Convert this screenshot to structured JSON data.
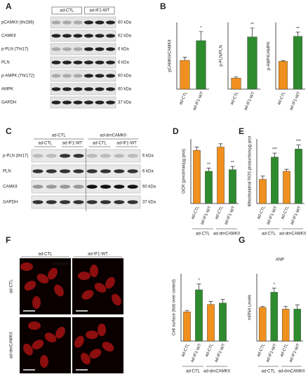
{
  "panel_labels": [
    "A",
    "B",
    "C",
    "D",
    "E",
    "F",
    "G"
  ],
  "blot_a": {
    "groups": [
      "ad-CTL",
      "ad-IF1-WT"
    ],
    "rows": [
      {
        "label": "pCAMKII (thr286)",
        "size": "60 kDa"
      },
      {
        "label": "CAMKII",
        "size": "62 kDa"
      },
      {
        "label": "p-PLN (Thr17)",
        "size": "6 kDa"
      },
      {
        "label": "PLN",
        "size": "6 kDa"
      },
      {
        "label": "p-AMPK (Thr172)",
        "size": "60 kDa"
      },
      {
        "label": "AMPK",
        "size": "60 kDa"
      },
      {
        "label": "GAPDH",
        "size": "37 kDa"
      }
    ]
  },
  "blot_c": {
    "groups": [
      "ad-CTL",
      "ad-drnCAMKII"
    ],
    "lanes": [
      "ad-CTL",
      "ad-IF1-WT",
      "ad-CTL",
      "ad-IF1-WT"
    ],
    "rows": [
      {
        "label": "p-PLN (thr17)",
        "size": "6 kDa"
      },
      {
        "label": "PLN",
        "size": "6 kDa"
      },
      {
        "label": "CAMKII",
        "size": "60 kDa"
      },
      {
        "label": "GAPDH",
        "size": "37 kDa"
      }
    ]
  },
  "images_f": {
    "columns": [
      "ad-CTL",
      "ad-IF1-WT"
    ],
    "rows": [
      "ad-CTL",
      "ad-drnCAMKII"
    ],
    "stain": "α-actinin"
  },
  "chart_data": [
    {
      "type": "bar",
      "ylabel": "pCAMKII/CAMKII",
      "categories": [
        "ad-CTL",
        "ad-IF1-WT"
      ],
      "values": [
        0.95,
        1.6
      ],
      "errors": [
        0.1,
        0.3
      ],
      "colors": [
        "#f0901e",
        "#2e8b2e"
      ],
      "annotations": [
        null,
        "*"
      ],
      "ylim": [
        0,
        2.2
      ]
    },
    {
      "type": "bar",
      "ylabel": "p-PLN/PLN",
      "categories": [
        "ad-CTL",
        "ad-IF1-WT"
      ],
      "values": [
        1.0,
        4.7
      ],
      "errors": [
        0.1,
        0.8
      ],
      "colors": [
        "#f0901e",
        "#2e8b2e"
      ],
      "annotations": [
        null,
        "**"
      ],
      "ylim": [
        0,
        6
      ]
    },
    {
      "type": "bar",
      "ylabel": "p-AMPK/AMPK",
      "categories": [
        "ad-CTL",
        "ad-IF1-WT"
      ],
      "values": [
        1.0,
        1.9
      ],
      "errors": [
        0.03,
        0.15
      ],
      "colors": [
        "#f0901e",
        "#2e8b2e"
      ],
      "annotations": [
        null,
        "**"
      ],
      "ylim": [
        0,
        2.4
      ]
    },
    {
      "type": "bar",
      "ylabel": "OCR (pmol/min/µg prot)",
      "groups": [
        "ad-CTL",
        "ad-drnCAMKII"
      ],
      "categories": [
        "ad-CTL",
        "ad-IF1-WT",
        "ad-CTL",
        "ad-IF1-WT"
      ],
      "values": [
        33,
        20,
        35,
        21
      ],
      "errors": [
        2,
        2,
        2,
        2
      ],
      "colors": [
        "#f0901e",
        "#2e8b2e",
        "#f0901e",
        "#2e8b2e"
      ],
      "annotations": [
        null,
        "**",
        null,
        "**"
      ],
      "ylim": [
        0,
        40
      ]
    },
    {
      "type": "bar",
      "ylabel": "Mitochondrial ROS production/µg prot",
      "groups": [
        "ad-CTL",
        "ad-drnCAMKII"
      ],
      "categories": [
        "ad-CTL",
        "ad-IF1-WT",
        "ad-CTL",
        "ad-IF1-WT"
      ],
      "values": [
        6,
        11.5,
        8,
        13.5
      ],
      "errors": [
        0.8,
        1,
        0.5,
        1
      ],
      "colors": [
        "#f0901e",
        "#2e8b2e",
        "#f0901e",
        "#2e8b2e"
      ],
      "annotations": [
        null,
        "***",
        null,
        "***"
      ],
      "ylim": [
        0,
        16
      ]
    },
    {
      "type": "bar",
      "ylabel": "Cell surface (fold over control)",
      "groups": [
        "ad-CTL",
        "ad-drnCAMKII"
      ],
      "categories": [
        "ad-CTL",
        "ad-IF1-WT",
        "ad-CTL",
        "ad-IF1-WT"
      ],
      "values": [
        1.0,
        1.75,
        1.25,
        1.3
      ],
      "errors": [
        0.05,
        0.2,
        0.1,
        0.12
      ],
      "colors": [
        "#f0901e",
        "#2e8b2e",
        "#f0901e",
        "#2e8b2e"
      ],
      "annotations": [
        null,
        "*",
        null,
        null
      ],
      "ylim": [
        0,
        2.3
      ]
    },
    {
      "type": "bar",
      "title": "ANP",
      "ylabel": "mRNA Levels",
      "groups": [
        "ad-CTL",
        "ad-drnCAMKII"
      ],
      "categories": [
        "ad-CTL",
        "ad-IF1-WT",
        "ad-CTL",
        "ad-IF1-WT"
      ],
      "values": [
        1.0,
        1.45,
        0.95,
        0.95
      ],
      "errors": [
        0.03,
        0.12,
        0.08,
        0.12
      ],
      "colors": [
        "#f0901e",
        "#2e8b2e",
        "#f0901e",
        "#2e8b2e"
      ],
      "annotations": [
        null,
        "*",
        null,
        null
      ],
      "ylim": [
        0,
        2
      ]
    }
  ]
}
